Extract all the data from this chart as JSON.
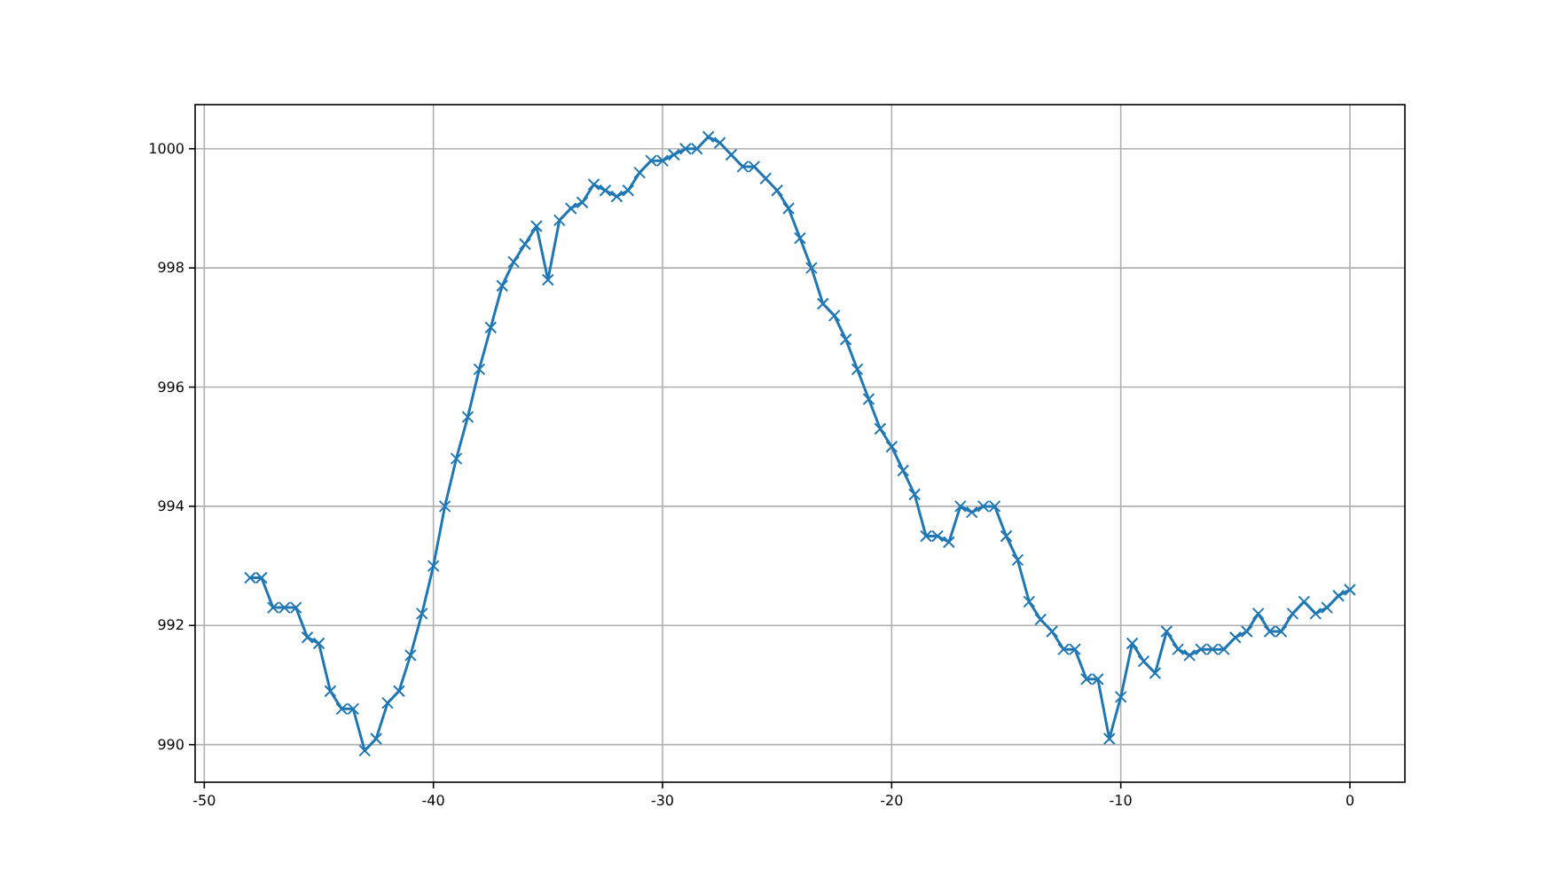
{
  "chart_data": {
    "type": "line",
    "x": [
      -48,
      -47.5,
      -47,
      -46.5,
      -46,
      -45.5,
      -45,
      -44.5,
      -44,
      -43.5,
      -43,
      -42.5,
      -42,
      -41.5,
      -41,
      -40.5,
      -40,
      -39.5,
      -39,
      -38.5,
      -38,
      -37.5,
      -37,
      -36.5,
      -36,
      -35.5,
      -35,
      -34.5,
      -34,
      -33.5,
      -33,
      -32.5,
      -32,
      -31.5,
      -31,
      -30.5,
      -30,
      -29.5,
      -29,
      -28.5,
      -28,
      -27.5,
      -27,
      -26.5,
      -26,
      -25.5,
      -25,
      -24.5,
      -24,
      -23.5,
      -23,
      -22.5,
      -22,
      -21.5,
      -21,
      -20.5,
      -20,
      -19.5,
      -19,
      -18.5,
      -18,
      -17.5,
      -17,
      -16.5,
      -16,
      -15.5,
      -15,
      -14.5,
      -14,
      -13.5,
      -13,
      -12.5,
      -12,
      -11.5,
      -11,
      -10.5,
      -10,
      -9.5,
      -9,
      -8.5,
      -8,
      -7.5,
      -7,
      -6.5,
      -6,
      -5.5,
      -5,
      -4.5,
      -4,
      -3.5,
      -3,
      -2.5,
      -2,
      -1.5,
      -1,
      -0.5,
      0
    ],
    "series": [
      {
        "color": "#1f77b4",
        "values": [
          992.8,
          992.8,
          992.3,
          992.3,
          992.3,
          991.8,
          991.7,
          990.9,
          990.6,
          990.6,
          989.9,
          990.1,
          990.7,
          990.9,
          991.5,
          992.2,
          993.0,
          994.0,
          994.8,
          995.5,
          996.3,
          997.0,
          997.7,
          998.1,
          998.4,
          998.7,
          997.8,
          998.8,
          999.0,
          999.1,
          999.4,
          999.3,
          999.2,
          999.3,
          999.6,
          999.8,
          999.8,
          999.9,
          1000.0,
          1000.0,
          1000.2,
          1000.1,
          999.9,
          999.7,
          999.7,
          999.5,
          999.3,
          999.0,
          998.5,
          998.0,
          997.4,
          997.2,
          996.8,
          996.3,
          995.8,
          995.3,
          995.0,
          994.6,
          994.2,
          993.5,
          993.5,
          993.4,
          994.0,
          993.9,
          994.0,
          994.0,
          993.5,
          993.1,
          992.4,
          992.1,
          991.9,
          991.6,
          991.6,
          991.1,
          991.1,
          990.1,
          990.8,
          991.7,
          991.4,
          991.2,
          991.9,
          991.6,
          991.5,
          991.6,
          991.6,
          991.6,
          991.8,
          991.9,
          992.2,
          991.9,
          991.9,
          992.2,
          992.4,
          992.2,
          992.3,
          992.5,
          992.6
        ]
      }
    ],
    "xlim": [
      -50.4,
      2.4
    ],
    "xticks": [
      -50,
      -40,
      -30,
      -20,
      -10,
      0
    ],
    "ylim": [
      989.37,
      1000.74
    ],
    "yticks": [
      990,
      992,
      994,
      996,
      998,
      1000
    ],
    "grid": true,
    "marker": "cross",
    "line_style": "solid"
  }
}
